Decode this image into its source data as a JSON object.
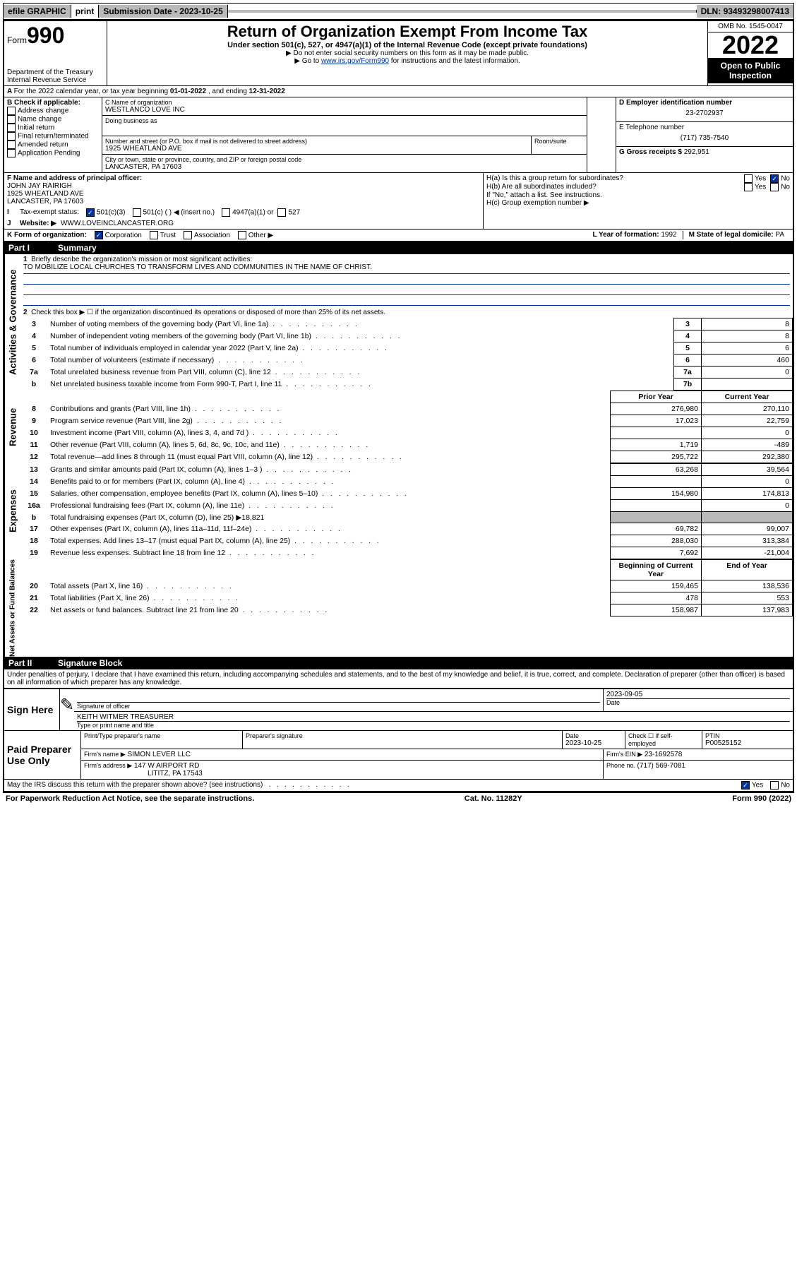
{
  "top_bar": {
    "efile": "efile GRAPHIC",
    "print": "print",
    "submission_label": "Submission Date - ",
    "submission_date": "2023-10-25",
    "dln_label": "DLN: ",
    "dln": "93493298007413"
  },
  "header": {
    "form_prefix": "Form",
    "form_no": "990",
    "dept": "Department of the Treasury",
    "irs": "Internal Revenue Service",
    "title": "Return of Organization Exempt From Income Tax",
    "subtitle": "Under section 501(c), 527, or 4947(a)(1) of the Internal Revenue Code (except private foundations)",
    "note1": "▶ Do not enter social security numbers on this form as it may be made public.",
    "note2_pre": "▶ Go to ",
    "note2_link": "www.irs.gov/Form990",
    "note2_post": " for instructions and the latest information.",
    "omb": "OMB No. 1545-0047",
    "year": "2022",
    "open_public": "Open to Public Inspection"
  },
  "lineA": {
    "text_pre": "For the 2022 calendar year, or tax year beginning ",
    "begin": "01-01-2022",
    "mid": " , and ending ",
    "end": "12-31-2022"
  },
  "sectionB": {
    "heading": "B Check if applicable:",
    "opts": [
      "Address change",
      "Name change",
      "Initial return",
      "Final return/terminated",
      "Amended return",
      "Application Pending"
    ],
    "name_label": "C Name of organization",
    "org_name": "WESTLANCO LOVE INC",
    "dba_label": "Doing business as",
    "street_label": "Number and street (or P.O. box if mail is not delivered to street address)",
    "room_label": "Room/suite",
    "street": "1925 WHEATLAND AVE",
    "city_label": "City or town, state or province, country, and ZIP or foreign postal code",
    "city": "LANCASTER, PA  17603",
    "d_label": "D Employer identification number",
    "ein": "23-2702937",
    "e_label": "E Telephone number",
    "phone": "(717) 735-7540",
    "g_label": "G Gross receipts $ ",
    "gross": "292,951"
  },
  "sectionF": {
    "f_label": "F Name and address of principal officer:",
    "officer_name": "JOHN JAY RAIRIGH",
    "officer_addr1": "1925 WHEATLAND AVE",
    "officer_addr2": "LANCASTER, PA  17603",
    "ha_label": "H(a) Is this a group return for subordinates?",
    "hb_label": "H(b) Are all subordinates included?",
    "hb_note": "If \"No,\" attach a list. See instructions.",
    "hc_label": "H(c) Group exemption number ▶"
  },
  "sectionI": {
    "label": "Tax-exempt status:",
    "opt1": "501(c)(3)",
    "opt2": "501(c) (  ) ◀ (insert no.)",
    "opt3": "4947(a)(1) or",
    "opt4": "527"
  },
  "sectionJ": {
    "label": "Website: ▶",
    "value": "WWW.LOVEINCLANCASTER.ORG"
  },
  "sectionK": {
    "label": "K Form of organization:",
    "opts": [
      "Corporation",
      "Trust",
      "Association",
      "Other ▶"
    ],
    "l_label": "L Year of formation: ",
    "l_val": "1992",
    "m_label": "M State of legal domicile: ",
    "m_val": "PA"
  },
  "part1": {
    "num": "Part I",
    "title": "Summary",
    "q1_label": "Briefly describe the organization's mission or most significant activities:",
    "q1_text": "TO MOBILIZE LOCAL CHURCHES TO TRANSFORM LIVES AND COMMUNITIES IN THE NAME OF CHRIST.",
    "q2": "Check this box ▶ ☐ if the organization discontinued its operations or disposed of more than 25% of its net assets.",
    "governance_rows": [
      {
        "n": "3",
        "label": "Number of voting members of the governing body (Part VI, line 1a)",
        "line": "3",
        "val": "8"
      },
      {
        "n": "4",
        "label": "Number of independent voting members of the governing body (Part VI, line 1b)",
        "line": "4",
        "val": "8"
      },
      {
        "n": "5",
        "label": "Total number of individuals employed in calendar year 2022 (Part V, line 2a)",
        "line": "5",
        "val": "6"
      },
      {
        "n": "6",
        "label": "Total number of volunteers (estimate if necessary)",
        "line": "6",
        "val": "460"
      },
      {
        "n": "7a",
        "label": "Total unrelated business revenue from Part VIII, column (C), line 12",
        "line": "7a",
        "val": "0"
      },
      {
        "n": "b",
        "label": "Net unrelated business taxable income from Form 990-T, Part I, line 11",
        "line": "7b",
        "val": ""
      }
    ],
    "rev_header_prior": "Prior Year",
    "rev_header_curr": "Current Year",
    "revenue_rows": [
      {
        "n": "8",
        "label": "Contributions and grants (Part VIII, line 1h)",
        "prior": "276,980",
        "curr": "270,110"
      },
      {
        "n": "9",
        "label": "Program service revenue (Part VIII, line 2g)",
        "prior": "17,023",
        "curr": "22,759"
      },
      {
        "n": "10",
        "label": "Investment income (Part VIII, column (A), lines 3, 4, and 7d )",
        "prior": "",
        "curr": "0"
      },
      {
        "n": "11",
        "label": "Other revenue (Part VIII, column (A), lines 5, 6d, 8c, 9c, 10c, and 11e)",
        "prior": "1,719",
        "curr": "-489"
      },
      {
        "n": "12",
        "label": "Total revenue—add lines 8 through 11 (must equal Part VIII, column (A), line 12)",
        "prior": "295,722",
        "curr": "292,380"
      }
    ],
    "expense_rows": [
      {
        "n": "13",
        "label": "Grants and similar amounts paid (Part IX, column (A), lines 1–3 )",
        "prior": "63,268",
        "curr": "39,564"
      },
      {
        "n": "14",
        "label": "Benefits paid to or for members (Part IX, column (A), line 4)",
        "prior": "",
        "curr": "0"
      },
      {
        "n": "15",
        "label": "Salaries, other compensation, employee benefits (Part IX, column (A), lines 5–10)",
        "prior": "154,980",
        "curr": "174,813"
      },
      {
        "n": "16a",
        "label": "Professional fundraising fees (Part IX, column (A), line 11e)",
        "prior": "",
        "curr": "0"
      },
      {
        "n": "b",
        "label": "Total fundraising expenses (Part IX, column (D), line 25) ▶18,821",
        "prior": "GREY",
        "curr": "GREY"
      },
      {
        "n": "17",
        "label": "Other expenses (Part IX, column (A), lines 11a–11d, 11f–24e)",
        "prior": "69,782",
        "curr": "99,007"
      },
      {
        "n": "18",
        "label": "Total expenses. Add lines 13–17 (must equal Part IX, column (A), line 25)",
        "prior": "288,030",
        "curr": "313,384"
      },
      {
        "n": "19",
        "label": "Revenue less expenses. Subtract line 18 from line 12",
        "prior": "7,692",
        "curr": "-21,004"
      }
    ],
    "na_header_begin": "Beginning of Current Year",
    "na_header_end": "End of Year",
    "netasset_rows": [
      {
        "n": "20",
        "label": "Total assets (Part X, line 16)",
        "prior": "159,465",
        "curr": "138,536"
      },
      {
        "n": "21",
        "label": "Total liabilities (Part X, line 26)",
        "prior": "478",
        "curr": "553"
      },
      {
        "n": "22",
        "label": "Net assets or fund balances. Subtract line 21 from line 20",
        "prior": "158,987",
        "curr": "137,983"
      }
    ]
  },
  "part2": {
    "num": "Part II",
    "title": "Signature Block",
    "perjury": "Under penalties of perjury, I declare that I have examined this return, including accompanying schedules and statements, and to the best of my knowledge and belief, it is true, correct, and complete. Declaration of preparer (other than officer) is based on all information of which preparer has any knowledge."
  },
  "sign_here": {
    "label": "Sign Here",
    "sig_officer_label": "Signature of officer",
    "date_label": "Date",
    "date": "2023-09-05",
    "name_title_label": "Type or print name and title",
    "name_title": "KEITH WITMER  TREASURER"
  },
  "paid_prep": {
    "label": "Paid Preparer Use Only",
    "col_name": "Print/Type preparer's name",
    "col_sig": "Preparer's signature",
    "col_date": "Date",
    "date": "2023-10-25",
    "check_label": "Check ☐ if self-employed",
    "ptin_label": "PTIN",
    "ptin": "P00525152",
    "firm_name_label": "Firm's name   ▶",
    "firm_name": "SIMON LEVER LLC",
    "firm_ein_label": "Firm's EIN ▶",
    "firm_ein": "23-1692578",
    "firm_addr_label": "Firm's address ▶",
    "firm_addr1": "147 W AIRPORT RD",
    "firm_addr2": "LITITZ, PA  17543",
    "phone_label": "Phone no. ",
    "phone": "(717) 569-7081"
  },
  "bottom": {
    "discuss": "May the IRS discuss this return with the preparer shown above? (see instructions)",
    "paperwork": "For Paperwork Reduction Act Notice, see the separate instructions.",
    "cat": "Cat. No. 11282Y",
    "form": "Form 990 (2022)"
  },
  "vert_labels": {
    "gov": "Activities & Governance",
    "rev": "Revenue",
    "exp": "Expenses",
    "na": "Net Assets or Fund Balances"
  }
}
